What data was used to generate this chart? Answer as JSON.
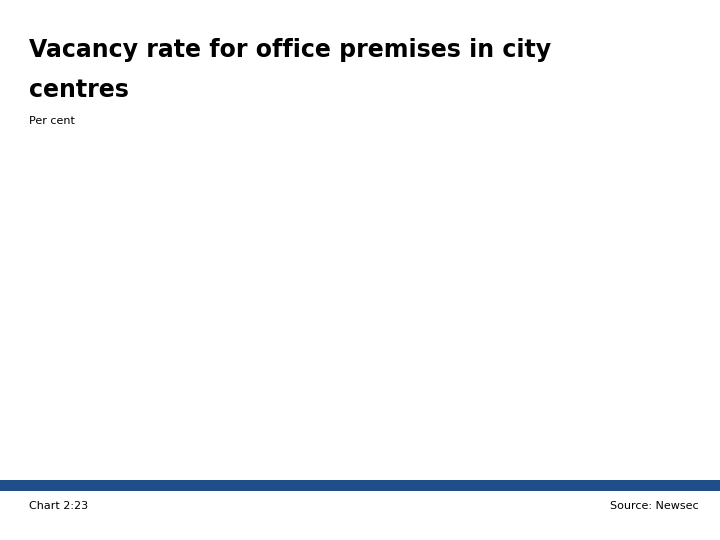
{
  "title_line1": "Vacancy rate for office premises in city",
  "title_line2": "centres",
  "subtitle": "Per cent",
  "footer_left": "Chart 2:23",
  "footer_right": "Source: Newsec",
  "background_color": "#ffffff",
  "title_color": "#000000",
  "subtitle_color": "#000000",
  "footer_color": "#000000",
  "footer_bar_color": "#1f4e89",
  "logo_bg_color": "#1f4e89",
  "title_fontsize": 17,
  "subtitle_fontsize": 8,
  "footer_fontsize": 8
}
